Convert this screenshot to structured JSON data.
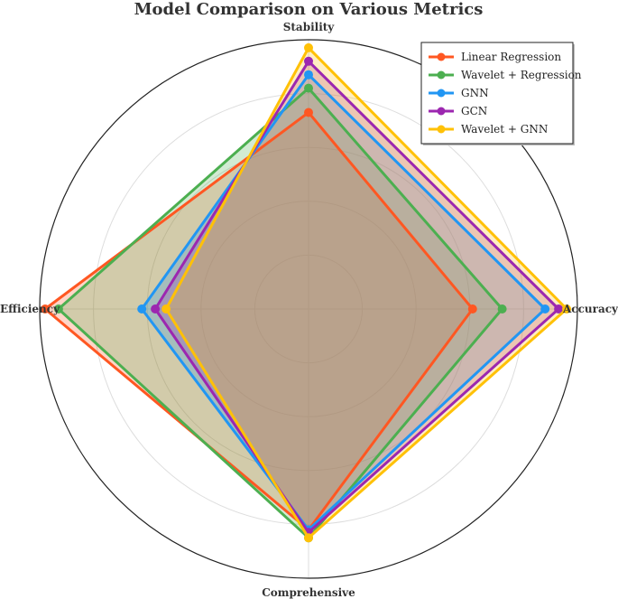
{
  "chart_data": {
    "type": "radar",
    "title": "Model Comparison on Various Metrics",
    "axes": [
      "Accuracy",
      "Stability",
      "Efficiency",
      "Comprehensive"
    ],
    "rmax": 1.0,
    "grid": true,
    "legend_position": "top-right",
    "series": [
      {
        "name": "Linear Regression",
        "color": "#ff5722",
        "values": [
          0.61,
          0.73,
          0.98,
          0.82
        ]
      },
      {
        "name": "Wavelet + Regression",
        "color": "#4caf50",
        "values": [
          0.72,
          0.82,
          0.93,
          0.85
        ]
      },
      {
        "name": "GNN",
        "color": "#2196f3",
        "values": [
          0.88,
          0.87,
          0.62,
          0.82
        ]
      },
      {
        "name": "GCN",
        "color": "#9c27b0",
        "values": [
          0.93,
          0.92,
          0.57,
          0.83
        ]
      },
      {
        "name": "Wavelet + GNN",
        "color": "#ffc107",
        "values": [
          0.96,
          0.97,
          0.53,
          0.85
        ]
      }
    ]
  }
}
